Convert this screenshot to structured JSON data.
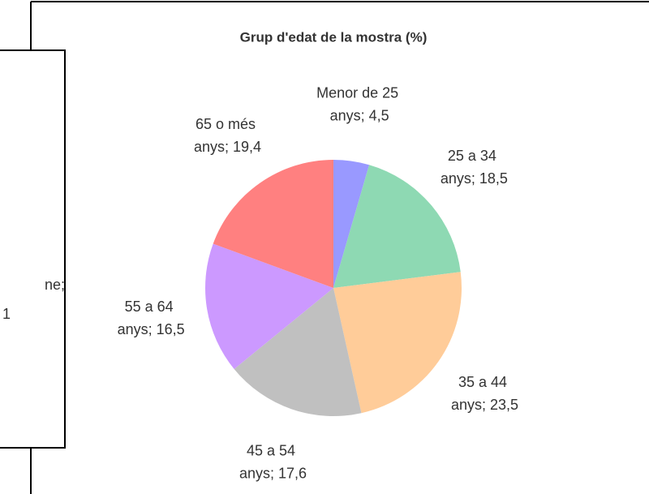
{
  "chart_data": {
    "type": "pie",
    "title": "Grup d'edat de la mostra (%)",
    "values": [
      4.5,
      18.5,
      23.5,
      17.6,
      16.5,
      19.4
    ],
    "value_labels": [
      "Menor de 25 anys; 4,5",
      "25 a 34 anys; 18,5",
      "35 a 44 anys; 23,5",
      "45 a 54 anys; 17,6",
      "55 a 64 anys; 16,5",
      "65 o més anys; 19,4"
    ],
    "colors": [
      "#9999ff",
      "#8ed9b3",
      "#ffcc99",
      "#c0c0c0",
      "#cc99ff",
      "#ff8080"
    ]
  },
  "background_chart": {
    "fragments": [
      "ne;",
      "1"
    ]
  }
}
